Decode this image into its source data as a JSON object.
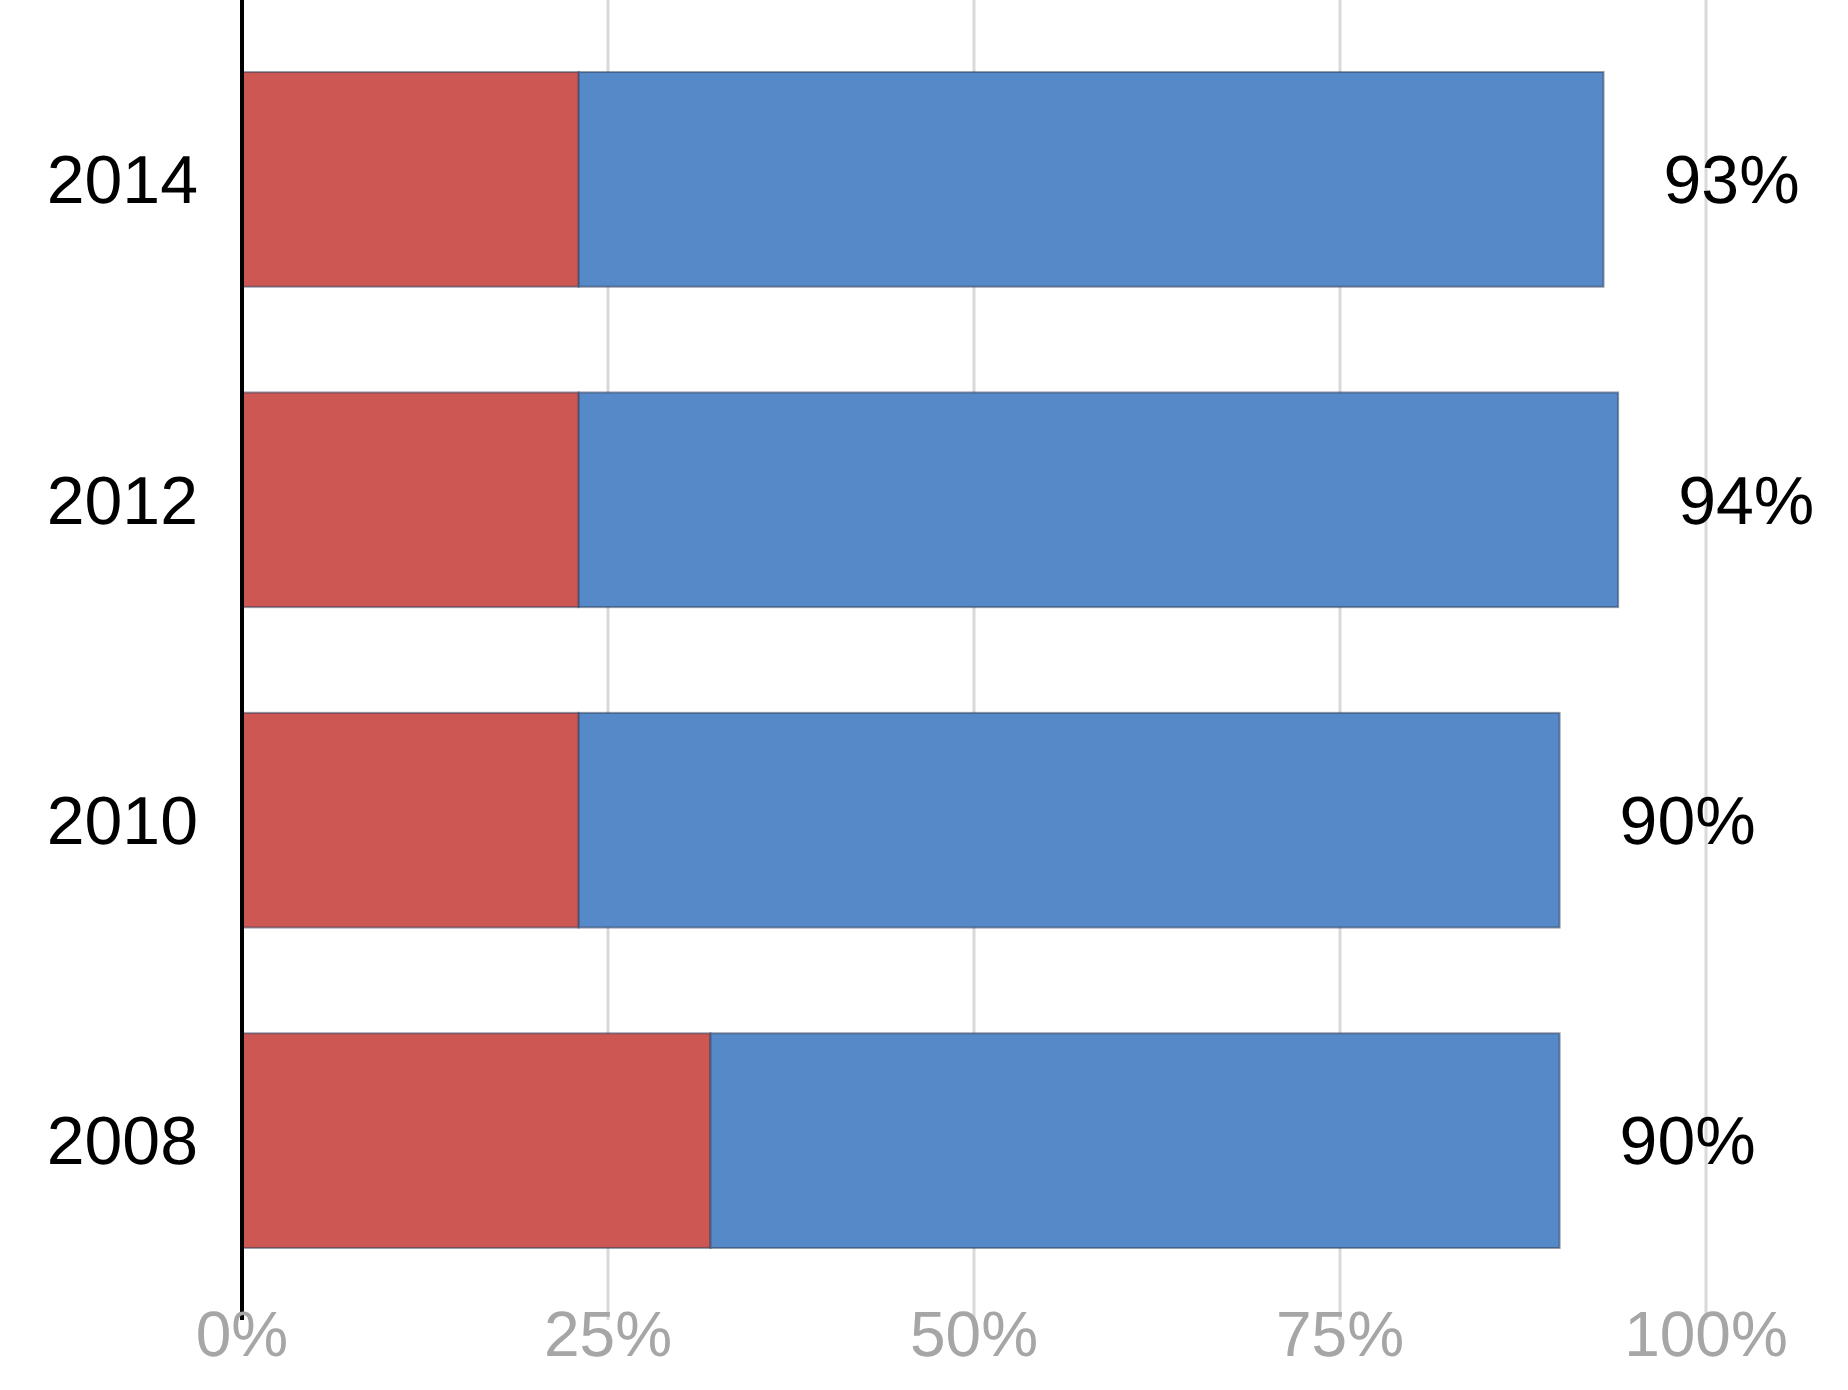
{
  "chart_data": {
    "type": "bar",
    "orientation": "horizontal",
    "stacked": true,
    "categories": [
      "2014",
      "2012",
      "2010",
      "2008"
    ],
    "series": [
      {
        "color": "#cd5753",
        "values": [
          23,
          23,
          23,
          32
        ]
      },
      {
        "color": "#5689c8",
        "values": [
          70,
          71,
          67,
          58
        ]
      }
    ],
    "totals": [
      "93%",
      "94%",
      "90%",
      "90%"
    ],
    "xlim": [
      0,
      100
    ],
    "xticks": [
      {
        "value": 0,
        "label": "0%"
      },
      {
        "value": 25,
        "label": "25%"
      },
      {
        "value": 50,
        "label": "50%"
      },
      {
        "value": 75,
        "label": "75%"
      },
      {
        "value": 100,
        "label": "100%"
      }
    ],
    "grid": "x"
  }
}
